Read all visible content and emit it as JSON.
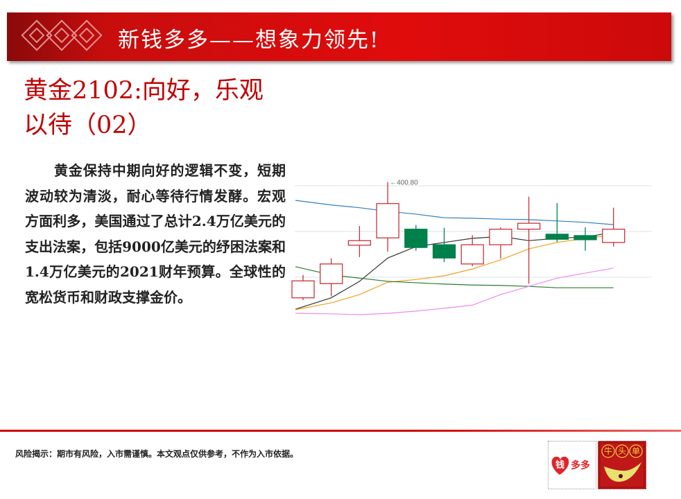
{
  "header": {
    "title": "新钱多多——想象力领先!"
  },
  "article": {
    "title": "黄金2102:向好，乐观以待（02）",
    "body": "黄金保持中期向好的逻辑不变，短期波动较为清淡，耐心等待行情发酵。宏观方面利多，美国通过了总计2.4万亿美元的支出法案，包括9000亿美元的纾困法案和1.4万亿美元的2021财年预算。全球性的宽松货币和财政支撑金价。"
  },
  "chart_data": {
    "type": "candlestick",
    "annotation": "←400.80",
    "grid": true,
    "candles": [
      {
        "open": 375.5,
        "close": 379.2,
        "high": 380.5,
        "low": 375.0,
        "dir": "up"
      },
      {
        "open": 378.6,
        "close": 382.9,
        "high": 384.1,
        "low": 375.8,
        "dir": "up"
      },
      {
        "open": 387.0,
        "close": 388.0,
        "high": 391.2,
        "low": 384.4,
        "dir": "up"
      },
      {
        "open": 388.6,
        "close": 396.1,
        "high": 400.8,
        "low": 385.6,
        "dir": "up"
      },
      {
        "open": 390.5,
        "close": 386.5,
        "high": 391.4,
        "low": 385.8,
        "dir": "down"
      },
      {
        "open": 387.1,
        "close": 384.2,
        "high": 390.8,
        "low": 383.3,
        "dir": "down"
      },
      {
        "open": 382.9,
        "close": 387.1,
        "high": 389.2,
        "low": 382.4,
        "dir": "up"
      },
      {
        "open": 387.1,
        "close": 390.5,
        "high": 390.9,
        "low": 384.1,
        "dir": "up"
      },
      {
        "open": 390.5,
        "close": 391.8,
        "high": 397.6,
        "low": 378.6,
        "dir": "up"
      },
      {
        "open": 389.4,
        "close": 388.3,
        "high": 396.2,
        "low": 387.7,
        "dir": "down"
      },
      {
        "open": 389.1,
        "close": 388.2,
        "high": 390.9,
        "low": 385.8,
        "dir": "down"
      },
      {
        "open": 387.6,
        "close": 390.5,
        "high": 395.2,
        "low": 386.7,
        "dir": "up"
      }
    ],
    "moving_averages": [
      {
        "color": "#2f7fc0",
        "values": [
          396.8,
          395.8,
          395.2,
          394.4,
          393.8,
          393.0,
          392.9,
          392.7,
          392.6,
          392.3,
          392.0,
          391.5
        ]
      },
      {
        "color": "#333333",
        "values": [
          373.0,
          375.5,
          379.1,
          384.2,
          386.7,
          387.6,
          388.5,
          388.9,
          388.0,
          388.5,
          388.8,
          389.8
        ]
      },
      {
        "color": "#f0a020",
        "values": [
          372.9,
          374.4,
          376.2,
          378.9,
          379.5,
          380.3,
          381.8,
          383.8,
          386.2,
          387.6,
          388.5,
          389.2
        ]
      },
      {
        "color": "#2a7a2a",
        "values": [
          382.3,
          380.5,
          379.8,
          379.1,
          378.8,
          378.5,
          378.3,
          378.2,
          378.0,
          377.7,
          377.7,
          377.7
        ]
      },
      {
        "color": "#ee88ee",
        "values": [
          372.1,
          372.0,
          371.8,
          372.1,
          372.6,
          373.2,
          373.9,
          376.2,
          378.0,
          379.8,
          380.9,
          382.0
        ]
      }
    ],
    "colors": {
      "up": "#c8323c",
      "down": "#00804a"
    }
  },
  "footer": {
    "disclaimer": "风险揭示：期市有风险，入市需谨慎。本文观点仅供参考，不作为入市依据。",
    "logo1_text": "钱多多",
    "logo2_text": "牛头单"
  }
}
